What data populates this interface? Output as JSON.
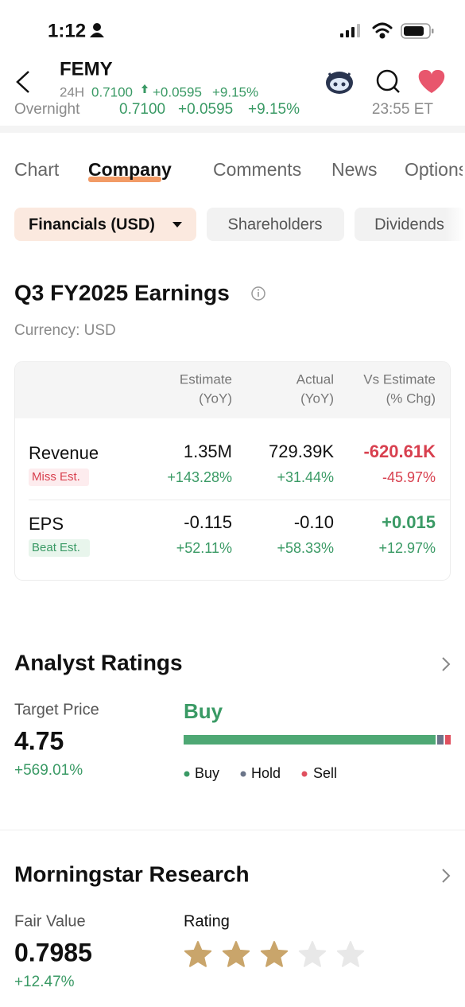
{
  "status_bar": {
    "time": "1:12"
  },
  "header": {
    "ticker": "FEMY",
    "session": "24H",
    "price": "0.7100",
    "change": "+0.0595",
    "change_pct": "+9.15%"
  },
  "overnight": {
    "label": "Overnight",
    "price": "0.7100",
    "change": "+0.0595",
    "change_pct": "+9.15%",
    "time": "23:55 ET"
  },
  "tabs": [
    "Chart",
    "Company",
    "Comments",
    "News",
    "Options"
  ],
  "subtabs": [
    "Financials (USD)",
    "Shareholders",
    "Dividends"
  ],
  "earnings": {
    "title": "Q3 FY2025 Earnings",
    "currency": "Currency: USD",
    "columns": [
      [
        "Estimate",
        "(YoY)"
      ],
      [
        "Actual",
        "(YoY)"
      ],
      [
        "Vs Estimate",
        "(% Chg)"
      ]
    ],
    "rows": [
      {
        "name": "Revenue",
        "badge": "Miss Est.",
        "estimate": "1.35M",
        "estimate_yoy": "+143.28%",
        "actual": "729.39K",
        "actual_yoy": "+31.44%",
        "diff": "-620.61K",
        "diff_pct": "-45.97%"
      },
      {
        "name": "EPS",
        "badge": "Beat Est.",
        "estimate": "-0.115",
        "estimate_yoy": "+52.11%",
        "actual": "-0.10",
        "actual_yoy": "+58.33%",
        "diff": "+0.015",
        "diff_pct": "+12.97%"
      }
    ]
  },
  "analyst": {
    "title": "Analyst Ratings",
    "target_label": "Target Price",
    "target": "4.75",
    "target_change": "+569.01%",
    "consensus": "Buy",
    "legend": [
      "Buy",
      "Hold",
      "Sell"
    ]
  },
  "morningstar": {
    "title": "Morningstar Research",
    "fair_value_label": "Fair Value",
    "fair_value": "0.7985",
    "fair_value_change": "+12.47%",
    "rating_label": "Rating",
    "stars": {
      "value": 3,
      "max": 5
    }
  }
}
